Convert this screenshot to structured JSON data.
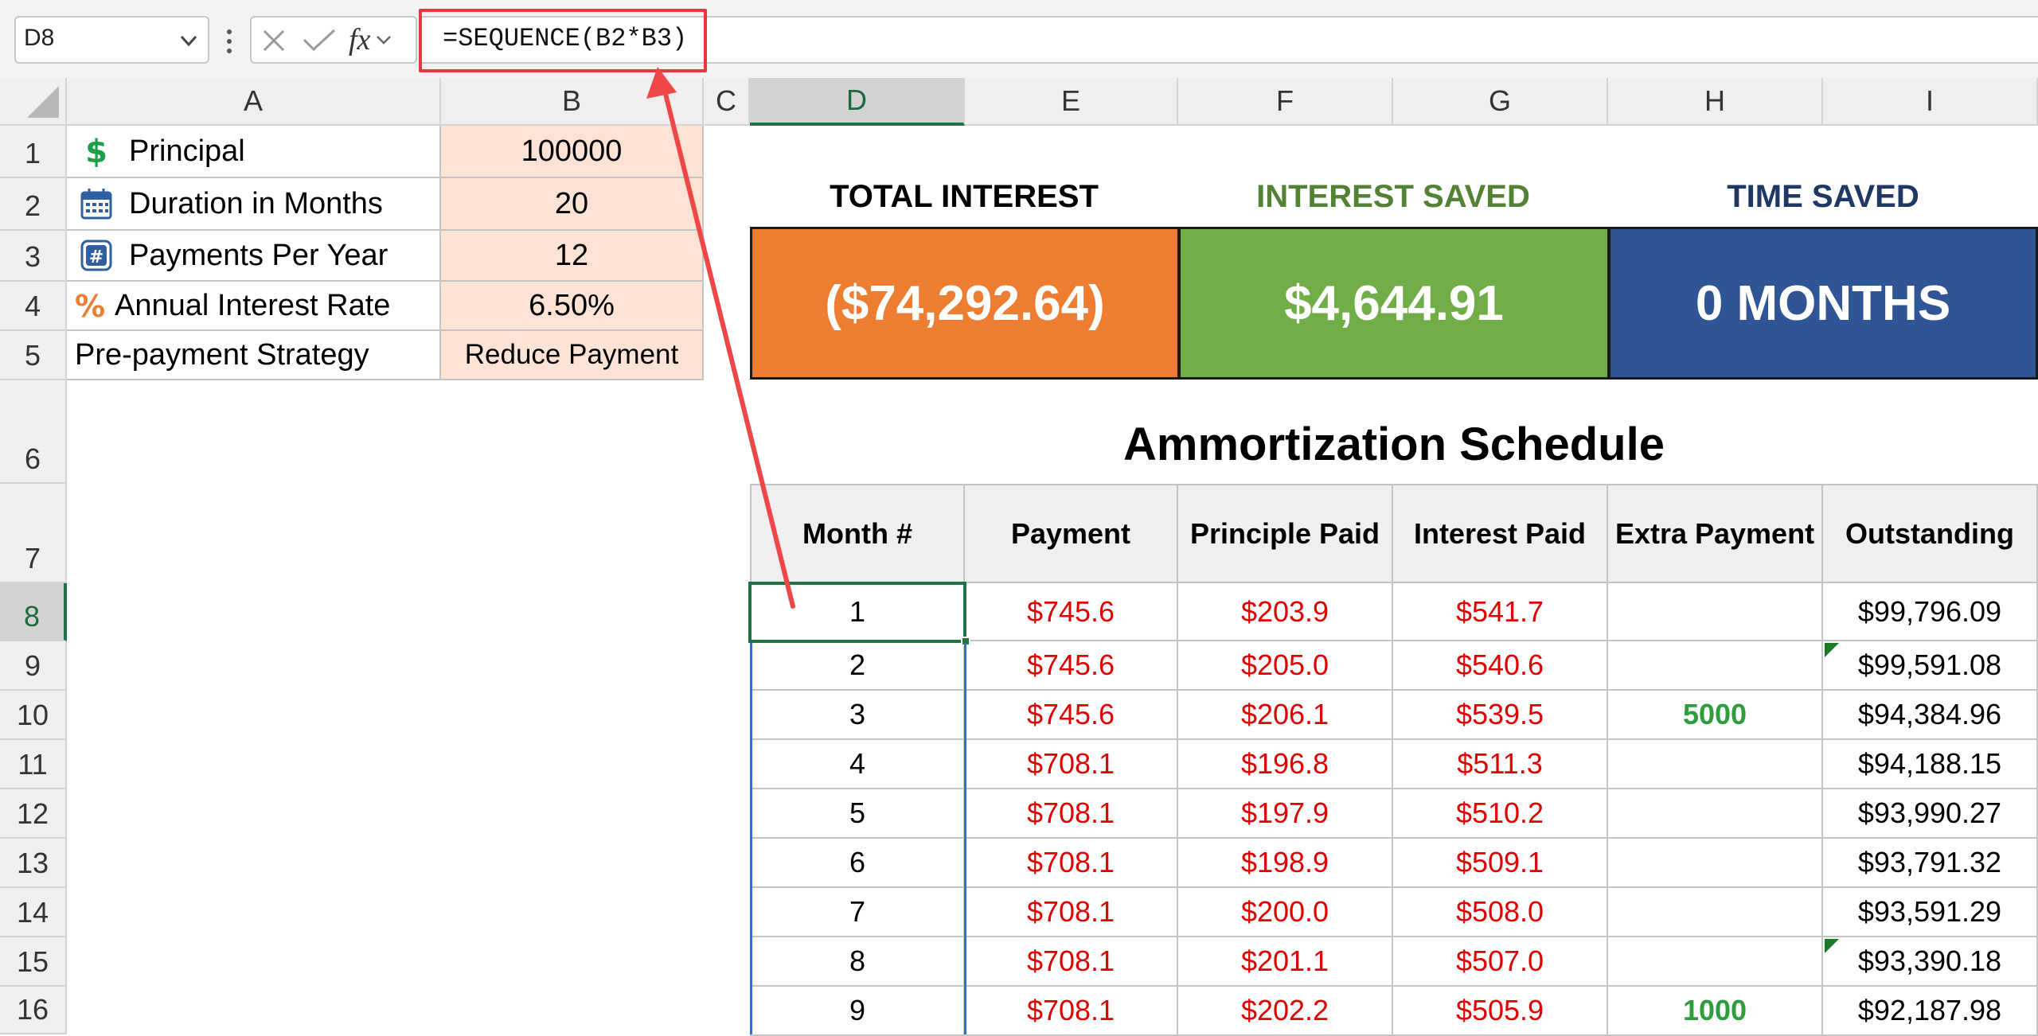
{
  "formula_bar": {
    "name_box": "D8",
    "formula": "=SEQUENCE(B2*B3)",
    "fx_label": "fx"
  },
  "columns": [
    "A",
    "B",
    "C",
    "D",
    "E",
    "F",
    "G",
    "H",
    "I"
  ],
  "rows": [
    "1",
    "2",
    "3",
    "4",
    "5",
    "6",
    "7",
    "8",
    "9",
    "10",
    "11",
    "12",
    "13",
    "14",
    "15",
    "16"
  ],
  "inputs": [
    {
      "label": "Principal",
      "value": "100000",
      "icon": "dollar-icon"
    },
    {
      "label": "Duration in Months",
      "value": "20",
      "icon": "calendar-icon"
    },
    {
      "label": "Payments Per Year",
      "value": "12",
      "icon": "hash-icon"
    },
    {
      "label": "Annual Interest Rate",
      "value": "6.50%",
      "icon": "percent-icon"
    },
    {
      "label": "Pre-payment Strategy",
      "value": "Reduce Payment",
      "icon": ""
    }
  ],
  "kpis": [
    {
      "title": "TOTAL INTEREST",
      "value": "($74,292.64)",
      "title_color": "#000000",
      "bg": "#ed7d31"
    },
    {
      "title": "INTEREST SAVED",
      "value": "$4,644.91",
      "title_color": "#548235",
      "bg": "#70ad47"
    },
    {
      "title": "TIME SAVED",
      "value": "0 MONTHS",
      "title_color": "#1f3864",
      "bg": "#2f5597"
    }
  ],
  "schedule": {
    "title": "Ammortization Schedule",
    "headers": [
      "Month #",
      "Payment",
      "Principle Paid",
      "Interest Paid",
      "Extra Payment",
      "Outstanding"
    ],
    "rows": [
      [
        "1",
        "$745.6",
        "$203.9",
        "$541.7",
        "",
        "$99,796.09"
      ],
      [
        "2",
        "$745.6",
        "$205.0",
        "$540.6",
        "",
        "$99,591.08"
      ],
      [
        "3",
        "$745.6",
        "$206.1",
        "$539.5",
        "5000",
        "$94,384.96"
      ],
      [
        "4",
        "$708.1",
        "$196.8",
        "$511.3",
        "",
        "$94,188.15"
      ],
      [
        "5",
        "$708.1",
        "$197.9",
        "$510.2",
        "",
        "$93,990.27"
      ],
      [
        "6",
        "$708.1",
        "$198.9",
        "$509.1",
        "",
        "$93,791.32"
      ],
      [
        "7",
        "$708.1",
        "$200.0",
        "$508.0",
        "",
        "$93,591.29"
      ],
      [
        "8",
        "$708.1",
        "$201.1",
        "$507.0",
        "",
        "$93,390.18"
      ],
      [
        "9",
        "$708.1",
        "$202.2",
        "$505.9",
        "1000",
        "$92,187.98"
      ]
    ]
  },
  "colors": {
    "accent_green": "#217346",
    "input_fill": "#fce3d6",
    "annotation_red": "#e23b3b",
    "negative_red": "#e00000"
  }
}
